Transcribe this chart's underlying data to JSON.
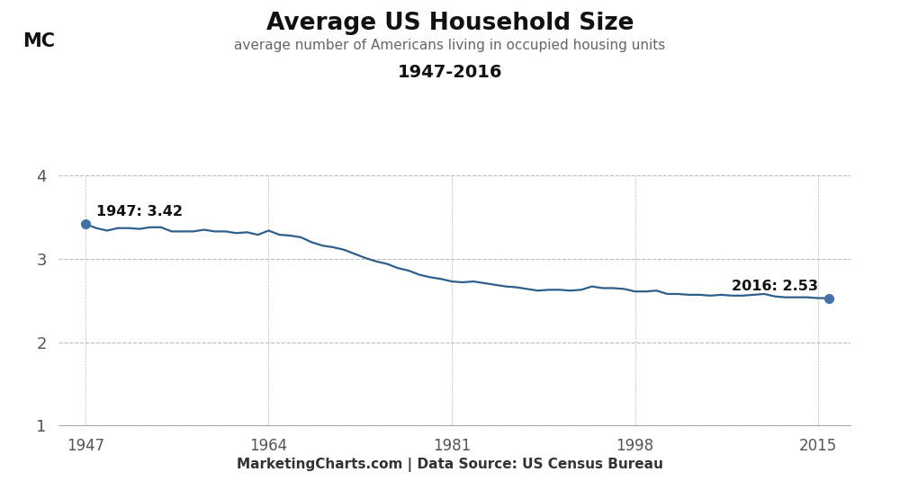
{
  "title": "Average US Household Size",
  "subtitle": "average number of Americans living in occupied housing units",
  "date_range": "1947-2016",
  "footer": "MarketingCharts.com | Data Source: US Census Bureau",
  "line_color": "#2E5F8A",
  "dot_color": "#4472A8",
  "background_color": "#ffffff",
  "footer_bg_color": "#cccccc",
  "grid_color": "#bbbbbb",
  "tick_color": "#555555",
  "ylim": [
    1,
    4
  ],
  "yticks": [
    1,
    2,
    3,
    4
  ],
  "xticks": [
    1947,
    1964,
    1981,
    1998,
    2015
  ],
  "first_label": "1947: 3.42",
  "last_label": "2016: 2.53",
  "logo_color": "#F5A623",
  "data": {
    "1947": 3.42,
    "1948": 3.37,
    "1949": 3.34,
    "1950": 3.37,
    "1951": 3.37,
    "1952": 3.36,
    "1953": 3.38,
    "1954": 3.38,
    "1955": 3.33,
    "1956": 3.33,
    "1957": 3.33,
    "1958": 3.35,
    "1959": 3.33,
    "1960": 3.33,
    "1961": 3.31,
    "1962": 3.32,
    "1963": 3.29,
    "1964": 3.34,
    "1965": 3.29,
    "1966": 3.28,
    "1967": 3.26,
    "1968": 3.2,
    "1969": 3.16,
    "1970": 3.14,
    "1971": 3.11,
    "1972": 3.06,
    "1973": 3.01,
    "1974": 2.97,
    "1975": 2.94,
    "1976": 2.89,
    "1977": 2.86,
    "1978": 2.81,
    "1979": 2.78,
    "1980": 2.76,
    "1981": 2.73,
    "1982": 2.72,
    "1983": 2.73,
    "1984": 2.71,
    "1985": 2.69,
    "1986": 2.67,
    "1987": 2.66,
    "1988": 2.64,
    "1989": 2.62,
    "1990": 2.63,
    "1991": 2.63,
    "1992": 2.62,
    "1993": 2.63,
    "1994": 2.67,
    "1995": 2.65,
    "1996": 2.65,
    "1997": 2.64,
    "1998": 2.61,
    "1999": 2.61,
    "2000": 2.62,
    "2001": 2.58,
    "2002": 2.58,
    "2003": 2.57,
    "2004": 2.57,
    "2005": 2.56,
    "2006": 2.57,
    "2007": 2.56,
    "2008": 2.56,
    "2009": 2.57,
    "2010": 2.58,
    "2011": 2.55,
    "2012": 2.54,
    "2013": 2.54,
    "2014": 2.54,
    "2015": 2.53,
    "2016": 2.53
  }
}
